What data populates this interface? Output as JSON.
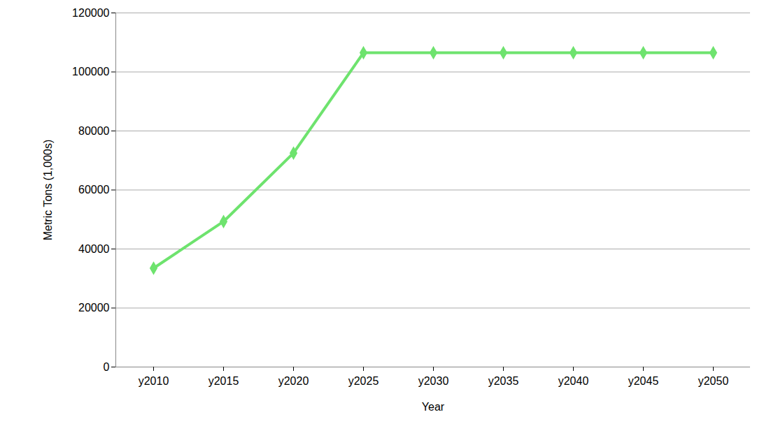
{
  "chart_data": {
    "type": "line",
    "x_label": "Year",
    "y_label": "Metric Tons (1,000s)",
    "categories": [
      "y2010",
      "y2015",
      "y2020",
      "y2025",
      "y2030",
      "y2035",
      "y2040",
      "y2045",
      "y2050"
    ],
    "values": [
      33500,
      49300,
      72500,
      106500,
      106500,
      106500,
      106500,
      106500,
      106500
    ],
    "color": "#6ee36e",
    "marker": "diamond",
    "ylim": [
      0,
      120000
    ],
    "yticks": [
      0,
      20000,
      40000,
      60000,
      80000,
      100000,
      120000
    ],
    "grid": true
  }
}
